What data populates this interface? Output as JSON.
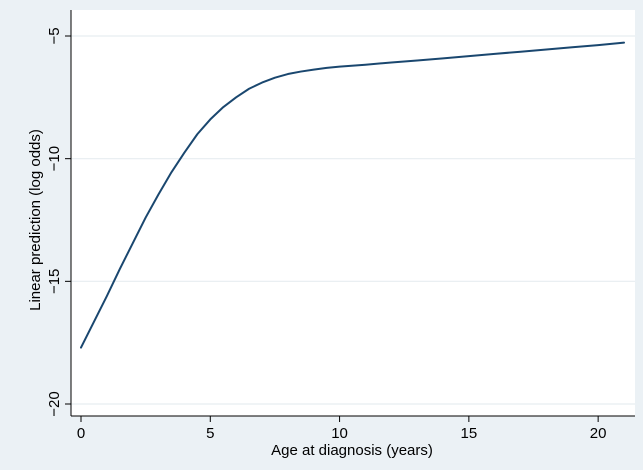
{
  "chart_data": {
    "type": "line",
    "title": "",
    "xlabel": "Age at diagnosis (years)",
    "ylabel": "Linear prediction (log odds)",
    "xlim": [
      0,
      21
    ],
    "ylim": [
      -20,
      -5
    ],
    "xticks": [
      0,
      5,
      10,
      15,
      20
    ],
    "xtick_labels": [
      "0",
      "5",
      "10",
      "15",
      "20"
    ],
    "yticks": [
      -20,
      -15,
      -10,
      -5
    ],
    "ytick_labels": [
      "−20",
      "−15",
      "−10",
      "−5"
    ],
    "grid": true,
    "legend": "none",
    "colors": {
      "background": "#ebf1f5",
      "plot_area": "#ffffff",
      "grid": "#e7edf1",
      "line": "#1a476f",
      "axis": "#000000"
    },
    "series": [
      {
        "x": [
          0,
          0.5,
          1,
          1.5,
          2,
          2.5,
          3,
          3.5,
          4,
          4.5,
          5,
          5.5,
          6,
          6.5,
          7,
          7.5,
          8,
          8.5,
          9,
          9.5,
          10,
          11,
          12,
          13,
          14,
          15,
          16,
          17,
          18,
          19,
          20,
          21
        ],
        "y": [
          -17.7,
          -16.65,
          -15.6,
          -14.5,
          -13.45,
          -12.4,
          -11.45,
          -10.55,
          -9.75,
          -9.0,
          -8.4,
          -7.9,
          -7.5,
          -7.15,
          -6.9,
          -6.7,
          -6.55,
          -6.45,
          -6.37,
          -6.3,
          -6.25,
          -6.17,
          -6.08,
          -6.0,
          -5.91,
          -5.82,
          -5.73,
          -5.64,
          -5.55,
          -5.46,
          -5.37,
          -5.27
        ]
      }
    ]
  }
}
